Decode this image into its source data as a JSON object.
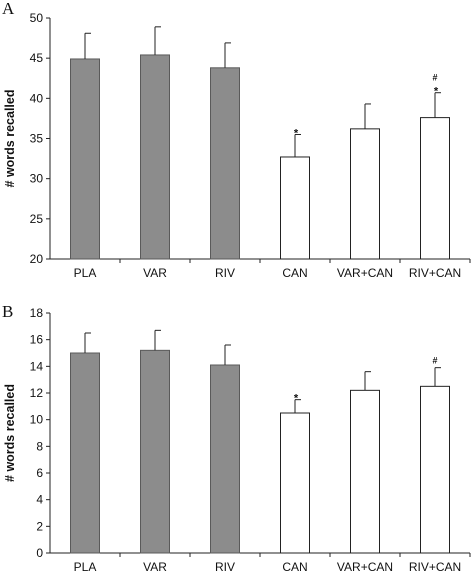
{
  "chart_data": [
    {
      "panel_label": "A",
      "type": "bar",
      "ylabel": "# words recalled",
      "ylim": [
        20,
        50
      ],
      "yticks": [
        20,
        25,
        30,
        35,
        40,
        45,
        50
      ],
      "categories": [
        "PLA",
        "VAR",
        "RIV",
        "CAN",
        "VAR+CAN",
        "RIV+CAN"
      ],
      "values": [
        44.9,
        45.4,
        43.8,
        32.7,
        36.2,
        37.6
      ],
      "error": [
        3.2,
        3.5,
        3.1,
        2.8,
        3.1,
        3.1
      ],
      "fill": [
        "#8c8c8c",
        "#8c8c8c",
        "#8c8c8c",
        "#ffffff",
        "#ffffff",
        "#ffffff"
      ],
      "annotations": [
        {
          "category": "CAN",
          "markers": [
            "*"
          ]
        },
        {
          "category": "RIV+CAN",
          "markers": [
            "#",
            "*"
          ]
        }
      ]
    },
    {
      "panel_label": "B",
      "type": "bar",
      "ylabel": "# words recalled",
      "ylim": [
        0,
        18
      ],
      "yticks": [
        0,
        2,
        4,
        6,
        8,
        10,
        12,
        14,
        16,
        18
      ],
      "categories": [
        "PLA",
        "VAR",
        "RIV",
        "CAN",
        "VAR+CAN",
        "RIV+CAN"
      ],
      "values": [
        15.0,
        15.2,
        14.1,
        10.5,
        12.2,
        12.5
      ],
      "error": [
        1.5,
        1.5,
        1.5,
        1.0,
        1.4,
        1.4
      ],
      "fill": [
        "#8c8c8c",
        "#8c8c8c",
        "#8c8c8c",
        "#ffffff",
        "#ffffff",
        "#ffffff"
      ],
      "annotations": [
        {
          "category": "CAN",
          "markers": [
            "*"
          ]
        },
        {
          "category": "RIV+CAN",
          "markers": [
            "#"
          ]
        }
      ]
    }
  ]
}
